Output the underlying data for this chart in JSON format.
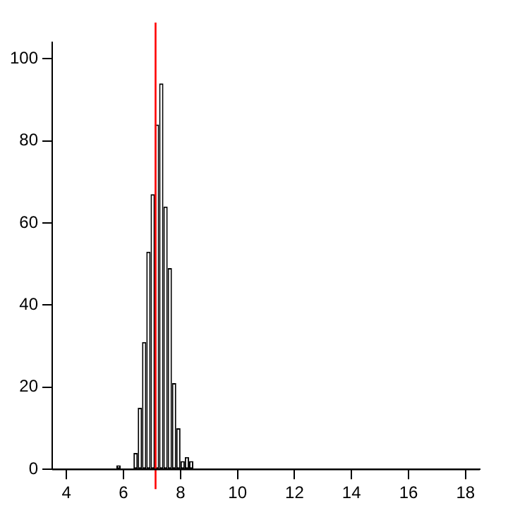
{
  "chart_data": {
    "type": "histogram",
    "bins": [
      5.75,
      5.9,
      6.05,
      6.2,
      6.35,
      6.5,
      6.65,
      6.8,
      6.95,
      7.1,
      7.25,
      7.4,
      7.55,
      7.7,
      7.85,
      8.0,
      8.15,
      8.3,
      8.45
    ],
    "values": [
      1,
      0,
      0,
      0,
      4,
      15,
      31,
      53,
      67,
      84,
      94,
      64,
      49,
      21,
      10,
      2,
      3,
      2
    ],
    "color": "#ffffff",
    "xlim": [
      3.5,
      18.5
    ],
    "xticks": [
      4,
      6,
      8,
      10,
      12,
      14,
      16,
      18
    ],
    "ylim": [
      0,
      104
    ],
    "yticks": [
      0,
      20,
      40,
      60,
      80,
      100
    ],
    "grid": false,
    "legend": false,
    "ref_lines": [
      {
        "axis": "x",
        "value": 7.125,
        "color": "#ff0000"
      },
      {
        "axis": "y",
        "value": 0,
        "color": "#000000"
      }
    ]
  }
}
